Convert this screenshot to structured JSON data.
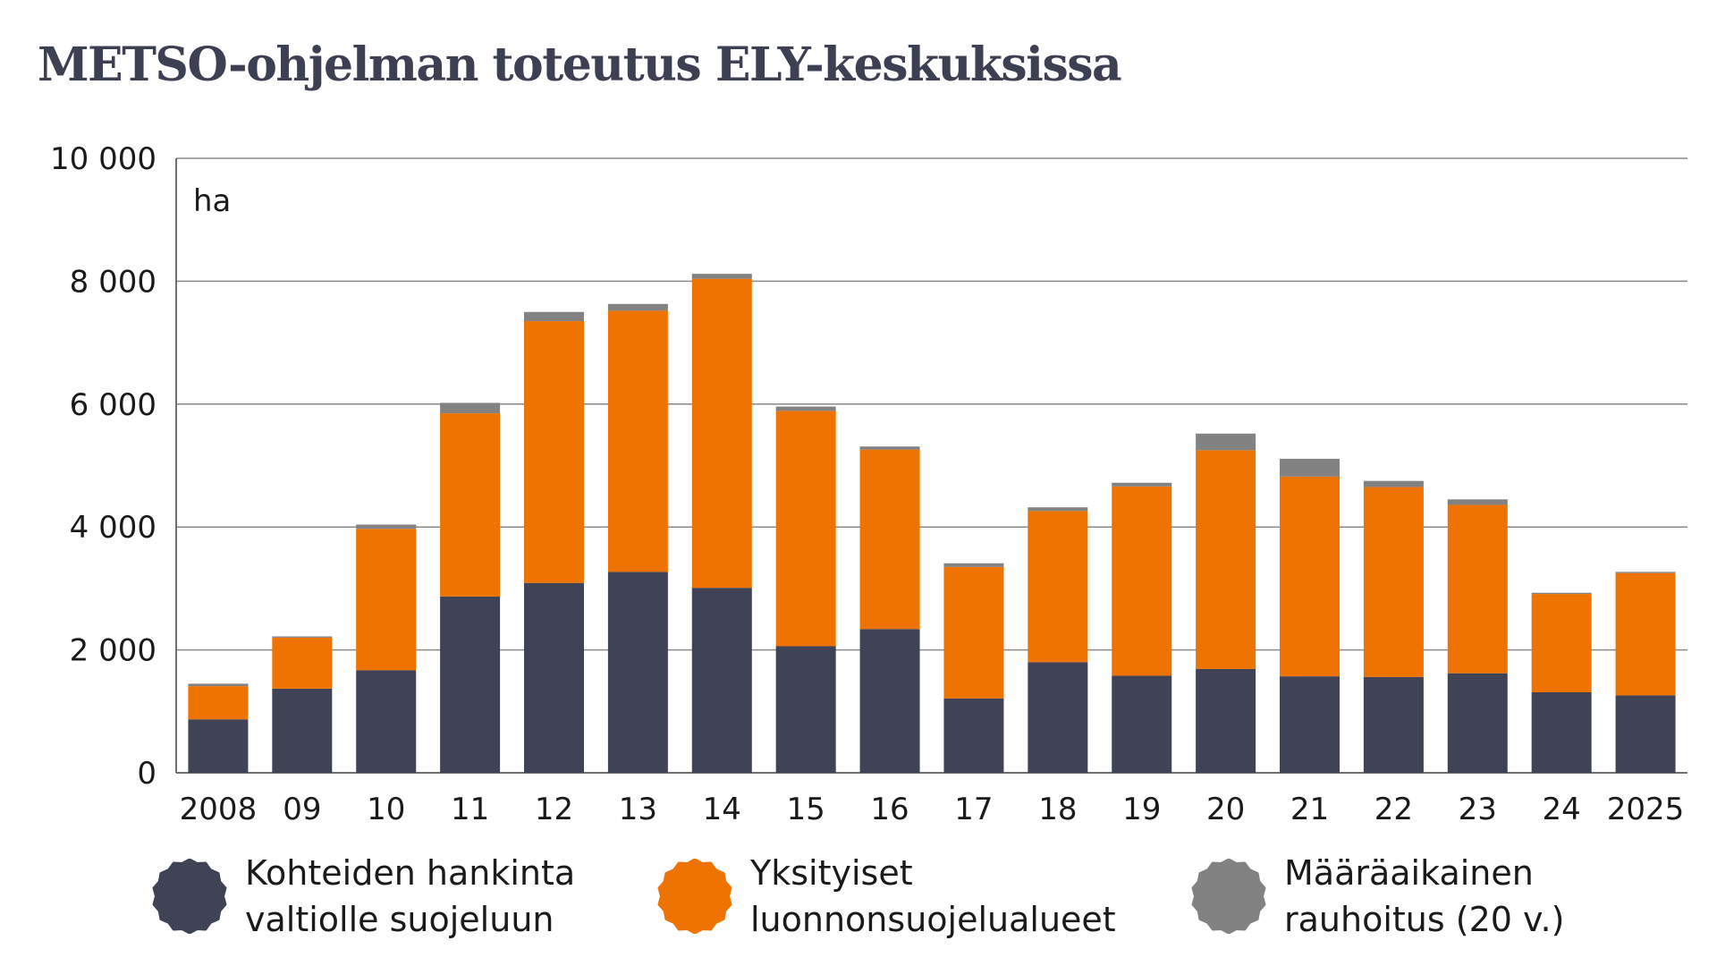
{
  "title": "METSO-ohjelman toteutus ELY-keskuksissa",
  "chart_data": {
    "type": "bar",
    "stacked": true,
    "unit": "ha",
    "ylim": [
      0,
      10000
    ],
    "yticks": [
      0,
      2000,
      4000,
      6000,
      8000,
      10000
    ],
    "ytick_labels": [
      "0",
      "2 000",
      "4 000",
      "6 000",
      "8 000",
      "10 000"
    ],
    "grid": true,
    "categories": [
      "2008",
      "09",
      "10",
      "11",
      "12",
      "13",
      "14",
      "15",
      "16",
      "17",
      "18",
      "19",
      "20",
      "21",
      "22",
      "23",
      "24",
      "2025"
    ],
    "series": [
      {
        "name": "Kohteiden hankinta valtiolle suojeluun",
        "color": "#404255",
        "values": [
          870,
          1370,
          1670,
          2870,
          3090,
          3270,
          3010,
          2060,
          2340,
          1210,
          1800,
          1580,
          1690,
          1570,
          1560,
          1620,
          1310,
          1260
        ]
      },
      {
        "name": "Yksityiset luonnonsuojelualueet",
        "color": "#ee7300",
        "values": [
          540,
          830,
          2300,
          2980,
          4260,
          4250,
          5030,
          3830,
          2920,
          2140,
          2460,
          3080,
          3560,
          3250,
          3090,
          2740,
          1600,
          1990
        ]
      },
      {
        "name": "Määräaikainen rauhoitus (20 v.)",
        "color": "#828282",
        "values": [
          40,
          20,
          70,
          170,
          150,
          110,
          80,
          70,
          50,
          60,
          60,
          60,
          270,
          290,
          100,
          90,
          20,
          20
        ]
      }
    ]
  },
  "legend": [
    {
      "label": "Kohteiden hankinta\nvaltiolle suojeluun",
      "color": "#404255"
    },
    {
      "label": "Yksityiset\nluonnonsuojelualueet",
      "color": "#ee7300"
    },
    {
      "label": "Määräaikainen\nrauhoitus (20 v.)",
      "color": "#828282"
    }
  ]
}
